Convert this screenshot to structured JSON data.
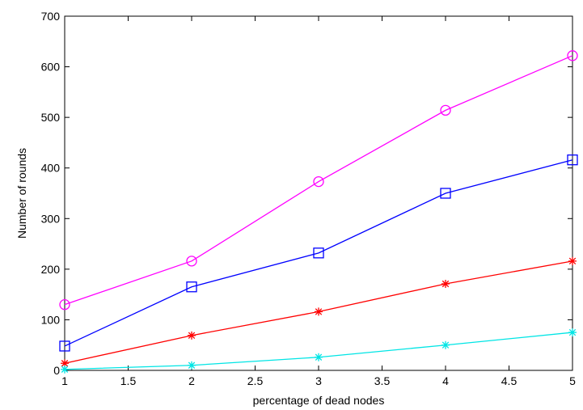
{
  "chart_data": {
    "type": "line",
    "title": "",
    "xlabel": "percentage of dead nodes",
    "ylabel": "Number of rounds",
    "xlim": [
      1,
      5
    ],
    "ylim": [
      0,
      700
    ],
    "xticks": [
      1,
      1.5,
      2,
      2.5,
      3,
      3.5,
      4,
      4.5,
      5
    ],
    "xtick_labels": [
      "1",
      "1.5",
      "2",
      "2.5",
      "3",
      "3.5",
      "4",
      "4.5",
      "5"
    ],
    "yticks": [
      0,
      100,
      200,
      300,
      400,
      500,
      600,
      700
    ],
    "ytick_labels": [
      "0",
      "100",
      "200",
      "300",
      "400",
      "500",
      "600",
      "700"
    ],
    "grid": false,
    "legend": "none",
    "x": [
      1,
      2,
      3,
      4,
      5
    ],
    "series": [
      {
        "color": "#ff00ff",
        "marker": "circle",
        "values": [
          130,
          216,
          373,
          514,
          622
        ]
      },
      {
        "color": "#0000ff",
        "marker": "square",
        "values": [
          48,
          165,
          232,
          350,
          416
        ]
      },
      {
        "color": "#ff0000",
        "marker": "star",
        "values": [
          14,
          69,
          116,
          171,
          216
        ]
      },
      {
        "color": "#00e5e5",
        "marker": "star",
        "values": [
          2,
          10,
          26,
          50,
          75
        ]
      }
    ]
  }
}
